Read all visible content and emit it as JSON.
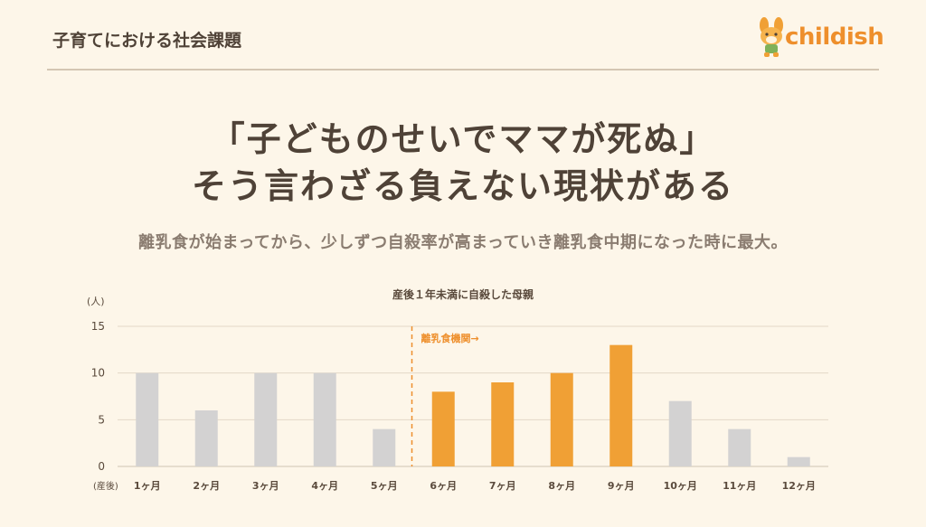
{
  "header": {
    "section_title": "子育てにおける社会課題",
    "logo_text": "childish"
  },
  "main": {
    "headline_line1": "「子どものせいでママが死ぬ」",
    "headline_line2": "そう言わざる負えない現状がある",
    "subline": "離乳食が始まってから、少しずつ自殺率が高まっていき離乳食中期になった時に最大。"
  },
  "colors": {
    "background": "#fdf6e9",
    "bar_gray": "#d3d2d2",
    "bar_orange": "#f0a035",
    "accent_orange": "#ee8f2c",
    "text_dark": "#4f4237"
  },
  "chart_data": {
    "type": "bar",
    "title": "産後１年未満に自殺した母親",
    "ylabel": "(人)",
    "xlabel": "(産後)",
    "categories": [
      "1ヶ月",
      "2ヶ月",
      "3ヶ月",
      "4ヶ月",
      "5ヶ月",
      "6ヶ月",
      "7ヶ月",
      "8ヶ月",
      "9ヶ月",
      "10ヶ月",
      "11ヶ月",
      "12ヶ月"
    ],
    "values": [
      10,
      6,
      10,
      10,
      4,
      8,
      9,
      10,
      13,
      7,
      4,
      1
    ],
    "highlight": [
      false,
      false,
      false,
      false,
      false,
      true,
      true,
      true,
      true,
      false,
      false,
      false
    ],
    "ylim": [
      0,
      15
    ],
    "yticks": [
      0,
      5,
      10,
      15
    ],
    "grid": true,
    "annotation": {
      "label": "離乳食機関→",
      "after_category_index": 4
    }
  }
}
